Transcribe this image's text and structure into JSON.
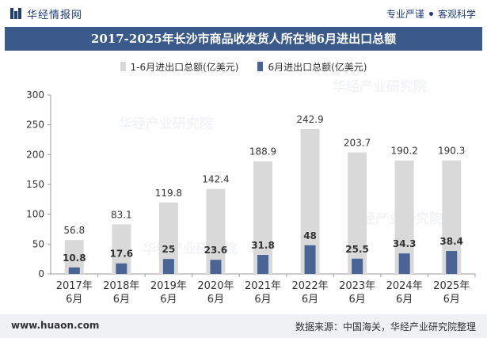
{
  "header": {
    "brand": "华经情报网",
    "slogan_left": "专业严谨",
    "slogan_right": "客观科学"
  },
  "footer": {
    "website": "www.huaon.com",
    "source": "数据来源：中国海关，华经产业研究院整理"
  },
  "watermark": "华经产业研究院",
  "colors": {
    "series1": "#d9d9d9",
    "series2": "#4a6496",
    "title_bg": "#3a5a8c"
  },
  "chart_data": {
    "type": "bar",
    "title": "2017-2025年长沙市商品收发货人所在地6月进出口总额",
    "categories": [
      [
        "2017年",
        "6月"
      ],
      [
        "2018年",
        "6月"
      ],
      [
        "2019年",
        "6月"
      ],
      [
        "2020年",
        "6月"
      ],
      [
        "2021年",
        "6月"
      ],
      [
        "2022年",
        "6月"
      ],
      [
        "2023年",
        "6月"
      ],
      [
        "2024年",
        "6月"
      ],
      [
        "2025年",
        "6月"
      ]
    ],
    "series": [
      {
        "name": "1-6月进出口总额(亿美元)",
        "values": [
          56.8,
          83.1,
          119.8,
          142.4,
          188.9,
          242.9,
          203.7,
          190.2,
          190.3
        ]
      },
      {
        "name": "6月进出口总额(亿美元)",
        "values": [
          10.8,
          17.6,
          25,
          23.6,
          31.8,
          48,
          25.5,
          34.3,
          38.4
        ]
      }
    ],
    "ylim": [
      0,
      300
    ],
    "yticks": [
      0,
      50,
      100,
      150,
      200,
      250,
      300
    ],
    "xlabel": "",
    "ylabel": "",
    "legend": "top-center",
    "grid": false
  }
}
